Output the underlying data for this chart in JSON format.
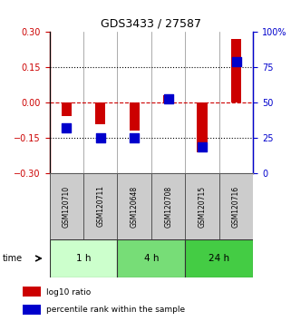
{
  "title": "GDS3433 / 27587",
  "samples": [
    "GSM120710",
    "GSM120711",
    "GSM120648",
    "GSM120708",
    "GSM120715",
    "GSM120716"
  ],
  "log10_ratio": [
    -0.055,
    -0.09,
    -0.12,
    0.03,
    -0.21,
    0.27
  ],
  "percentile_rank": [
    32,
    25,
    25,
    53,
    19,
    79
  ],
  "time_groups": [
    {
      "label": "1 h",
      "start": 0,
      "end": 2,
      "color": "#ccffcc"
    },
    {
      "label": "4 h",
      "start": 2,
      "end": 4,
      "color": "#77dd77"
    },
    {
      "label": "24 h",
      "start": 4,
      "end": 6,
      "color": "#44cc44"
    }
  ],
  "ylim_left": [
    -0.3,
    0.3
  ],
  "ylim_right": [
    0,
    100
  ],
  "yticks_left": [
    -0.3,
    -0.15,
    0,
    0.15,
    0.3
  ],
  "yticks_right": [
    0,
    25,
    50,
    75,
    100
  ],
  "bar_color_red": "#cc0000",
  "bar_color_blue": "#0000cc",
  "hline_color": "#cc0000",
  "dotted_color": "#000000",
  "bg_color": "#ffffff",
  "sample_box_color": "#cccccc",
  "legend_red_label": "log10 ratio",
  "legend_blue_label": "percentile rank within the sample",
  "bar_width": 0.3,
  "blue_marker_size": 60
}
